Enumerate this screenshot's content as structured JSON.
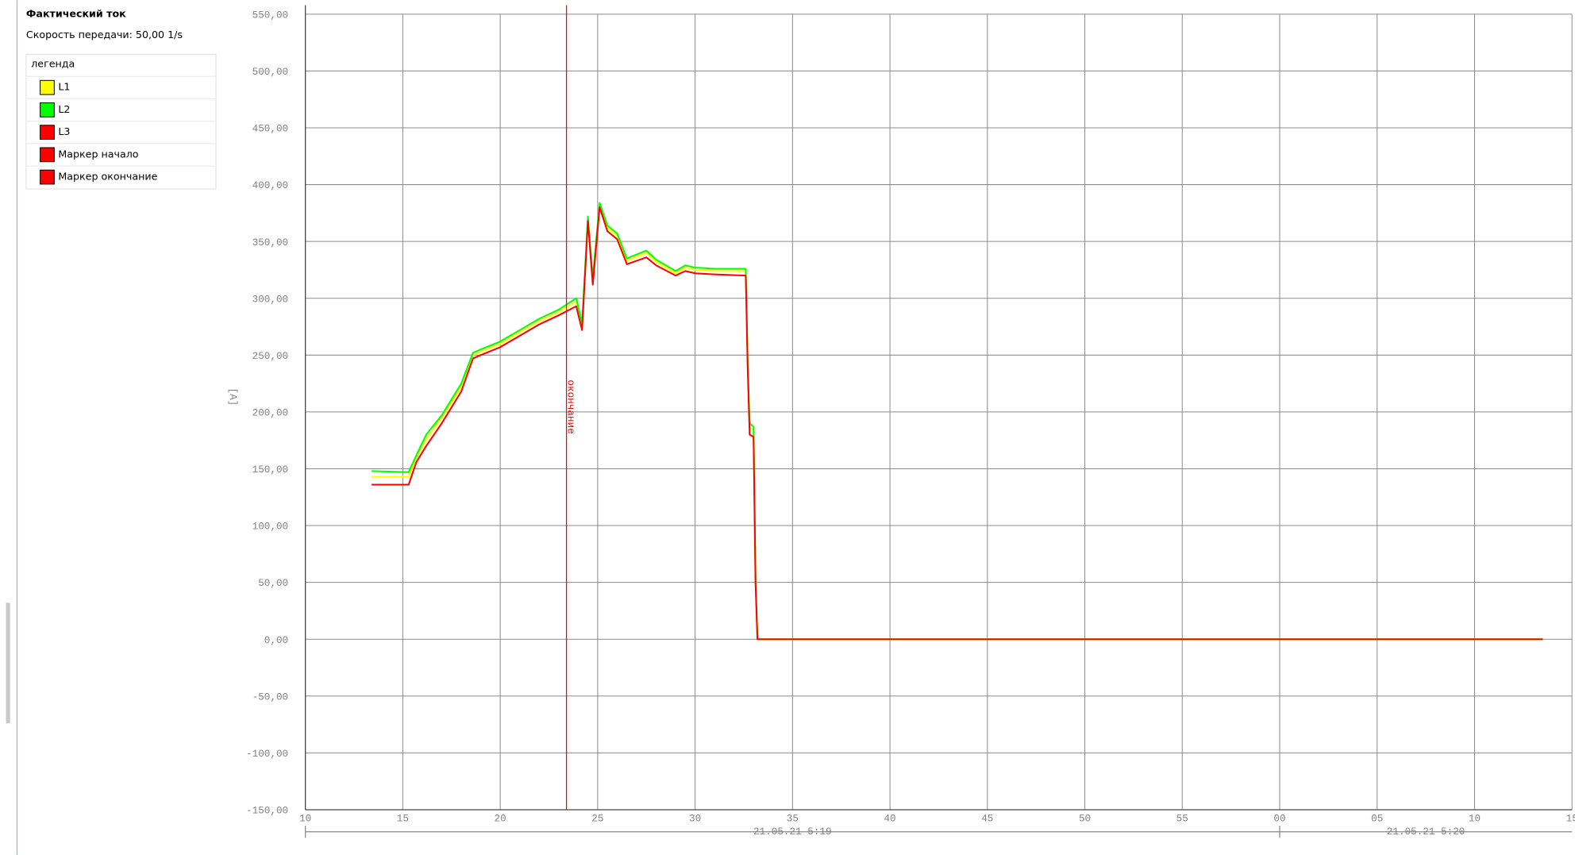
{
  "chart_data": {
    "type": "line",
    "title": "Фактический ток",
    "subtitle": "Скорость передачи: 50,00 1/s",
    "legend_title": "легенда",
    "y_label": "[A]",
    "x": [
      13.4,
      15.3,
      15.7,
      16.2,
      17,
      18,
      18.6,
      19,
      20,
      21,
      22,
      23,
      23.9,
      24.2,
      24.5,
      24.75,
      25.1,
      25.5,
      26,
      26.5,
      27.5,
      28,
      29,
      29.5,
      30,
      31,
      32.6,
      32.7,
      32.8,
      33,
      33.1,
      33.2,
      73.5
    ],
    "series": [
      {
        "name": "L1",
        "color": "#ffff00",
        "values": [
          143,
          143,
          160,
          176,
          195,
          222,
          250,
          253,
          260,
          270,
          280,
          288,
          297,
          276,
          370,
          316,
          382,
          362,
          355,
          333,
          340,
          332,
          322,
          327,
          325,
          324,
          324,
          241,
          186,
          184,
          52,
          0,
          0
        ]
      },
      {
        "name": "L2",
        "color": "#00ff00",
        "values": [
          148,
          147,
          162,
          180,
          197,
          225,
          252,
          255,
          262,
          272,
          282,
          290,
          300,
          278,
          372,
          318,
          384,
          364,
          357,
          335,
          342,
          334,
          324,
          329,
          327,
          326,
          326,
          242,
          190,
          187,
          55,
          0,
          0
        ]
      },
      {
        "name": "L3",
        "color": "#ff0000",
        "values": [
          136,
          136,
          156,
          170,
          190,
          218,
          247,
          250,
          257,
          267,
          277,
          285,
          293,
          272,
          368,
          312,
          380,
          359,
          352,
          330,
          336,
          329,
          320,
          324,
          322,
          321,
          320,
          238,
          180,
          178,
          50,
          0,
          0
        ]
      }
    ],
    "markers": [
      {
        "name": "Маркер начало",
        "color": "#ff0000"
      },
      {
        "name": "Маркер окончание",
        "color": "#ff0000",
        "x": 23.4,
        "label": "окончание"
      }
    ],
    "xlim": [
      10,
      75
    ],
    "xticks": [
      10,
      15,
      20,
      25,
      30,
      35,
      40,
      45,
      50,
      55,
      {
        "value": 60,
        "label": "00"
      },
      {
        "value": 65,
        "label": "05"
      },
      {
        "value": 70,
        "label": "10"
      },
      {
        "value": 75,
        "label": "15"
      }
    ],
    "x_groups": [
      {
        "label": "21.05.21 5:19",
        "start": 10,
        "end": 60
      },
      {
        "label": "21.05.21 5:20",
        "start": 60,
        "end": 75
      }
    ],
    "ylim": [
      -150,
      550
    ],
    "yticks": [
      {
        "value": -150,
        "label": "-150,00"
      },
      {
        "value": -100,
        "label": "-100,00"
      },
      {
        "value": -50,
        "label": "-50,00"
      },
      {
        "value": 0,
        "label": "0,00"
      },
      {
        "value": 50,
        "label": "50,00"
      },
      {
        "value": 100,
        "label": "100,00"
      },
      {
        "value": 150,
        "label": "150,00"
      },
      {
        "value": 200,
        "label": "200,00"
      },
      {
        "value": 250,
        "label": "250,00"
      },
      {
        "value": 300,
        "label": "300,00"
      },
      {
        "value": 350,
        "label": "350,00"
      },
      {
        "value": 400,
        "label": "400,00"
      },
      {
        "value": 450,
        "label": "450,00"
      },
      {
        "value": 500,
        "label": "500,00"
      },
      {
        "value": 550,
        "label": "550,00"
      }
    ],
    "grid": true
  }
}
